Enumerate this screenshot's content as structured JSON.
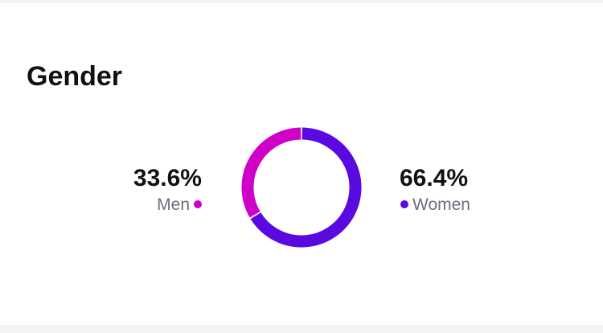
{
  "chart_data": {
    "type": "donut",
    "title": "Gender",
    "categories": [
      "Men",
      "Women"
    ],
    "values": [
      33.6,
      66.4
    ],
    "value_labels": [
      "33.6%",
      "66.4%"
    ],
    "colors": [
      "#d000c6",
      "#5a0ae0"
    ]
  }
}
